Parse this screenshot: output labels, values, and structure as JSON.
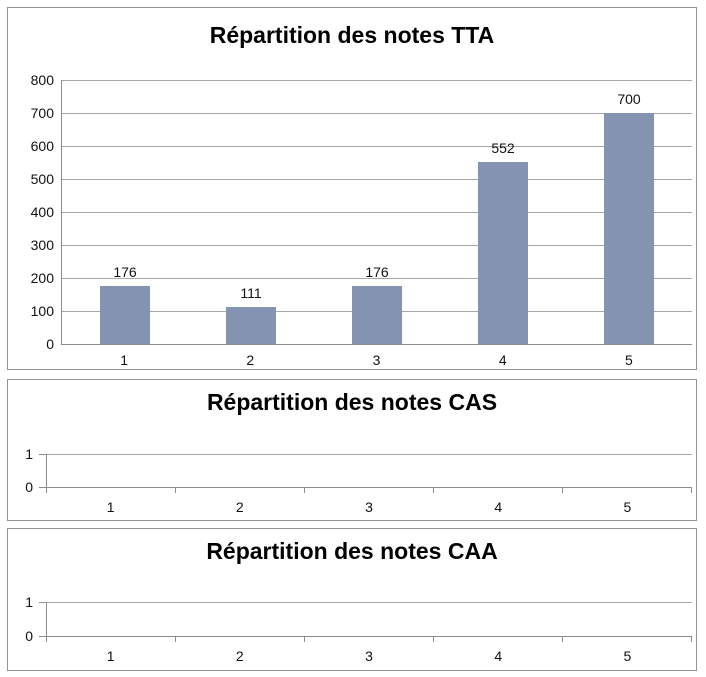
{
  "colors": {
    "bar_fill": "#8593B3",
    "gridline": "#A8A8A8",
    "axis_line": "#8D8D8D",
    "panel_border": "#949494",
    "text": "#111111",
    "title_text": "#000000",
    "background": "#FFFFFF"
  },
  "chart_data": [
    {
      "type": "bar",
      "title": "Répartition des notes TTA",
      "categories": [
        "1",
        "2",
        "3",
        "4",
        "5"
      ],
      "values": [
        176,
        111,
        176,
        552,
        700
      ],
      "data_labels": [
        "176",
        "111",
        "176",
        "552",
        "700"
      ],
      "xlabel": "",
      "ylabel": "",
      "ylim": [
        0,
        800
      ],
      "yticks": [
        0,
        100,
        200,
        300,
        400,
        500,
        600,
        700,
        800
      ],
      "ytick_labels": [
        "0",
        "100",
        "200",
        "300",
        "400",
        "500",
        "600",
        "700",
        "800"
      ],
      "grid": true,
      "legend": false
    },
    {
      "type": "bar",
      "title": "Répartition des notes CAS",
      "categories": [
        "1",
        "2",
        "3",
        "4",
        "5"
      ],
      "values": [],
      "data_labels": [],
      "xlabel": "",
      "ylabel": "",
      "ylim": [
        0,
        1
      ],
      "yticks": [
        0,
        1
      ],
      "ytick_labels": [
        "0",
        "1"
      ],
      "grid": true,
      "legend": false
    },
    {
      "type": "bar",
      "title": "Répartition des notes CAA",
      "categories": [
        "1",
        "2",
        "3",
        "4",
        "5"
      ],
      "values": [],
      "data_labels": [],
      "xlabel": "",
      "ylabel": "",
      "ylim": [
        0,
        1
      ],
      "yticks": [
        0,
        1
      ],
      "ytick_labels": [
        "0",
        "1"
      ],
      "grid": true,
      "legend": false
    }
  ]
}
